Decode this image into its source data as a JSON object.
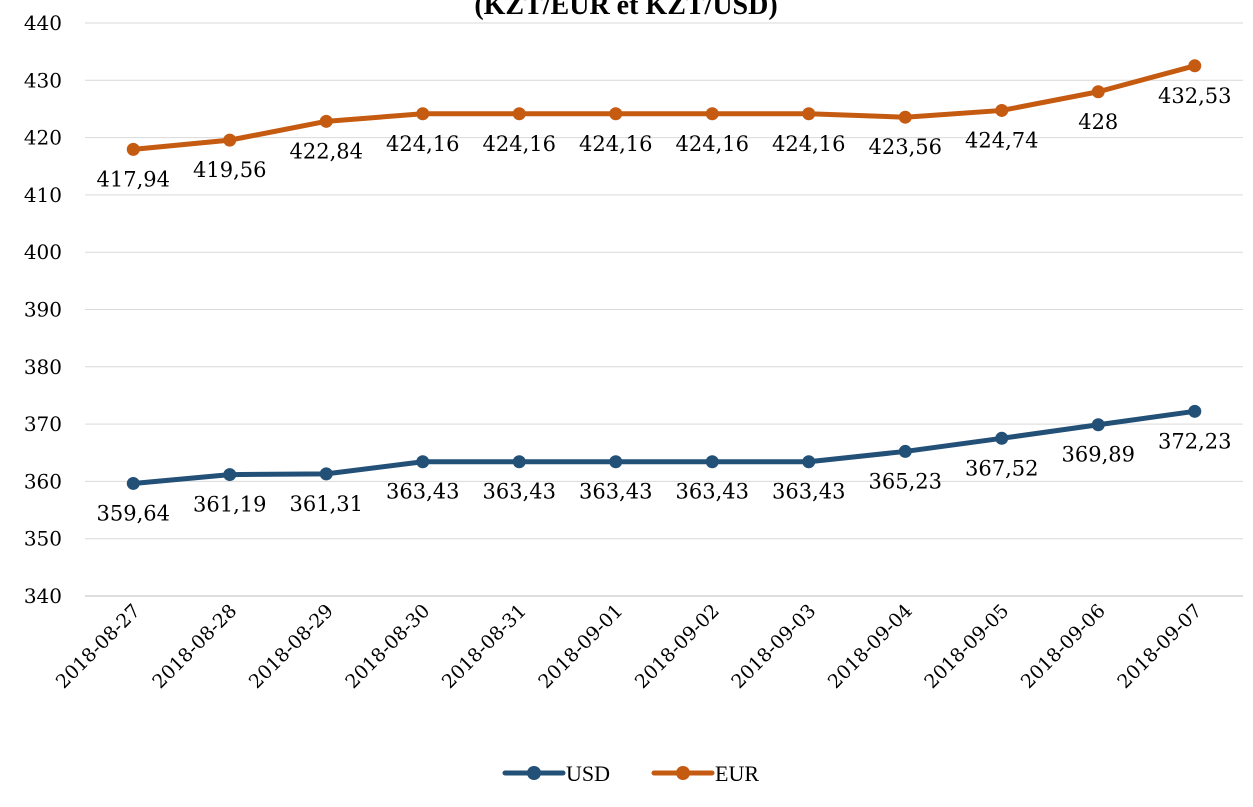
{
  "chart_data": {
    "type": "line",
    "title": "(KZT/EUR et KZT/USD)",
    "xlabel": "",
    "ylabel": "",
    "categories": [
      "2018-08-27",
      "2018-08-28",
      "2018-08-29",
      "2018-08-30",
      "2018-08-31",
      "2018-09-01",
      "2018-09-02",
      "2018-09-03",
      "2018-09-04",
      "2018-09-05",
      "2018-09-06",
      "2018-09-07"
    ],
    "ylim": [
      340,
      440
    ],
    "yticks": [
      340,
      350,
      360,
      370,
      380,
      390,
      400,
      410,
      420,
      430,
      440
    ],
    "grid": true,
    "legend_position": "bottom",
    "series": [
      {
        "name": "USD",
        "color": "#235077",
        "values": [
          359.64,
          361.19,
          361.31,
          363.43,
          363.43,
          363.43,
          363.43,
          363.43,
          365.23,
          367.52,
          369.89,
          372.23
        ],
        "labels": [
          "359,64",
          "361,19",
          "361,31",
          "363,43",
          "363,43",
          "363,43",
          "363,43",
          "363,43",
          "365,23",
          "367,52",
          "369,89",
          "372,23"
        ]
      },
      {
        "name": "EUR",
        "color": "#c55a11",
        "values": [
          417.94,
          419.56,
          422.84,
          424.16,
          424.16,
          424.16,
          424.16,
          424.16,
          423.56,
          424.74,
          428,
          432.53
        ],
        "labels": [
          "417,94",
          "419,56",
          "422,84",
          "424,16",
          "424,16",
          "424,16",
          "424,16",
          "424,16",
          "423,56",
          "424,74",
          "428",
          "432,53"
        ]
      }
    ]
  }
}
